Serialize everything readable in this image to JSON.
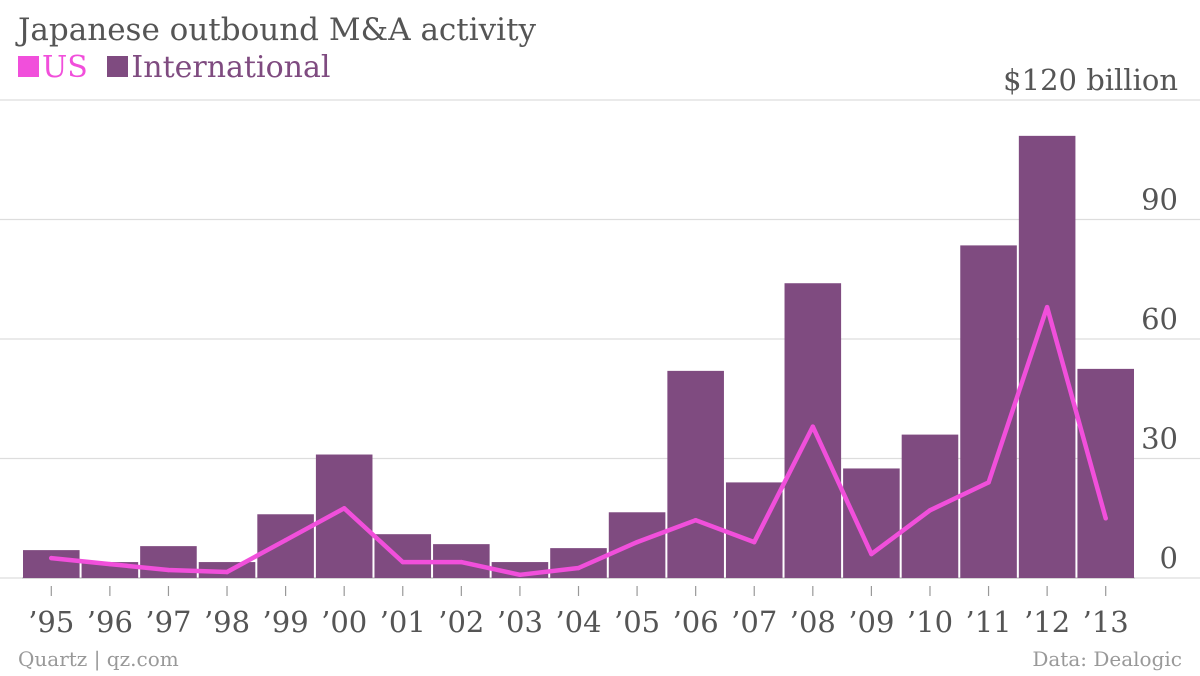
{
  "colors": {
    "us": "#f14fdb",
    "international": "#7f4b80",
    "grid": "#dddddd",
    "text": "#555555",
    "footer": "#999999"
  },
  "footer": {
    "source": "Quartz | qz.com",
    "data": "Data: Dealogic"
  },
  "chart_data": {
    "type": "bar",
    "title": "Japanese outbound M&A activity",
    "categories": [
      "’95",
      "’96",
      "’97",
      "’98",
      "’99",
      "’00",
      "’01",
      "’02",
      "’03",
      "’04",
      "’05",
      "’06",
      "’07",
      "’08",
      "’09",
      "’10",
      "’11",
      "’12",
      "’13"
    ],
    "series": [
      {
        "name": "International",
        "type": "bar",
        "values": [
          7,
          4,
          8,
          4,
          16,
          31,
          11,
          8.5,
          4,
          7.5,
          16.5,
          52,
          24,
          74,
          27.5,
          36,
          83.5,
          111,
          52.5
        ]
      },
      {
        "name": "US",
        "type": "line",
        "values": [
          5,
          3.5,
          2,
          1.5,
          9.5,
          17.5,
          4,
          4,
          0.8,
          2.5,
          9,
          14.5,
          9,
          38,
          6,
          17,
          24,
          68,
          15
        ]
      }
    ],
    "yticks": [
      {
        "value": 0,
        "label": "0"
      },
      {
        "value": 30,
        "label": "30"
      },
      {
        "value": 60,
        "label": "60"
      },
      {
        "value": 90,
        "label": "90"
      },
      {
        "value": 120,
        "label": "$120 billion"
      }
    ],
    "ylim": [
      0,
      120
    ],
    "grid": true,
    "legend": "top-left"
  }
}
